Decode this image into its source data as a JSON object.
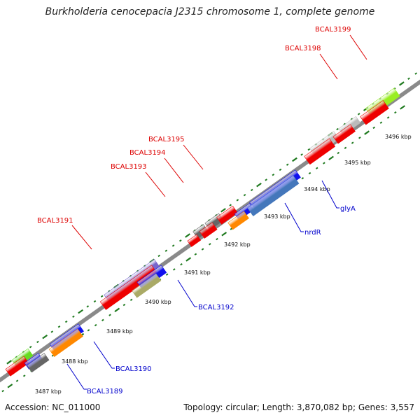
{
  "title": "Burkholderia cenocepacia J2315 chromosome 1, complete genome",
  "footer": {
    "accession": "Accession: NC_011000",
    "stats": "Topology: circular; Length: 3,870,082 bp; Genes: 3,557"
  },
  "colors": {
    "backbone": "#999999",
    "tick": "#1f7a1f",
    "label_top": "#dd0000",
    "label_bottom": "#0000cc"
  },
  "kbp_ticks": [
    "3487 kbp",
    "3488 kbp",
    "3489 kbp",
    "3490 kbp",
    "3491 kbp",
    "3492 kbp",
    "3493 kbp",
    "3494 kbp",
    "3495 kbp",
    "3496 kbp"
  ],
  "gene_labels": {
    "top": [
      "BCAL3191",
      "BCAL3193",
      "BCAL3194",
      "BCAL3195",
      "BCAL3198",
      "BCAL3199"
    ],
    "bottom": [
      "BCAL3189",
      "BCAL3190",
      "BCAL3192",
      "nrdR",
      "glyA"
    ]
  }
}
